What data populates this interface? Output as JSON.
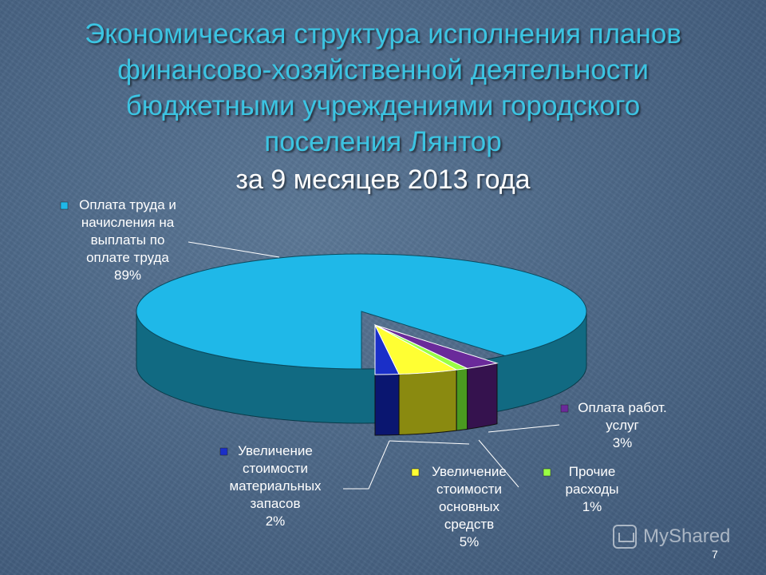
{
  "title_lines": [
    "Экономическая структура исполнения планов",
    "финансово-хозяйственной деятельности",
    "бюджетными учреждениями городского",
    "поселения Лянтор"
  ],
  "subtitle": "за 9 месяцев 2013 года",
  "chart_data": {
    "type": "pie",
    "style": "3d-exploded",
    "title": "Экономическая структура исполнения планов финансово-хозяйственной деятельности бюджетными учреждениями городского поселения Лянтор за 9 месяцев 2013 года",
    "slices": [
      {
        "label_lines": [
          "Оплата труда и",
          "начисления на",
          "выплаты по",
          "оплате труда"
        ],
        "value": 89,
        "value_text": "89%",
        "color": "#1fb8e8",
        "side_color": "#116a82"
      },
      {
        "label_lines": [
          "Увеличение",
          "стоимости",
          "материальных",
          "запасов"
        ],
        "value": 2,
        "value_text": "2%",
        "color": "#1a2fc8",
        "side_color": "#0a1670"
      },
      {
        "label_lines": [
          "Увеличение",
          "стоимости",
          "основных",
          "средств"
        ],
        "value": 5,
        "value_text": "5%",
        "color": "#ffff33",
        "side_color": "#8a8a10"
      },
      {
        "label_lines": [
          "Прочие",
          "расходы"
        ],
        "value": 1,
        "value_text": "1%",
        "color": "#99ff44",
        "side_color": "#4a9a20"
      },
      {
        "label_lines": [
          "Оплата работ.",
          "услуг"
        ],
        "value": 3,
        "value_text": "3%",
        "color": "#6a2a9a",
        "side_color": "#35124e"
      }
    ]
  },
  "page_number": "7",
  "watermark": "MyShared"
}
